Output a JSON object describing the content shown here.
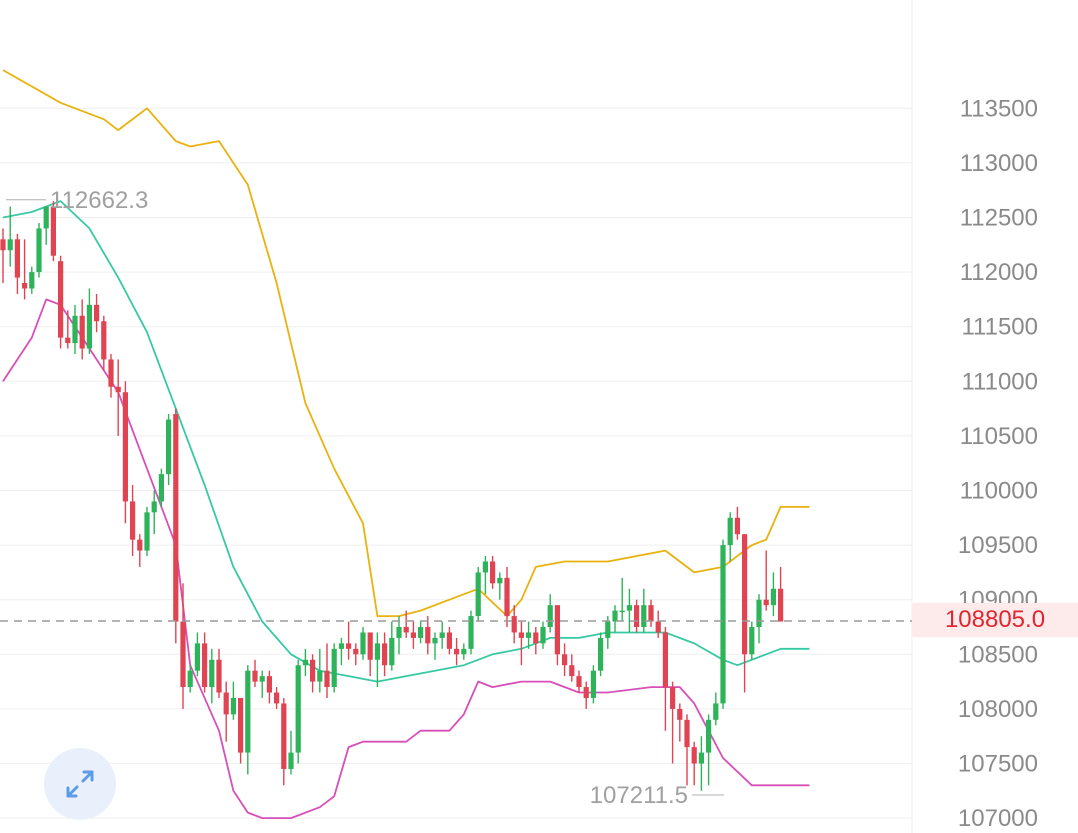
{
  "chart_data": {
    "type": "candlestick",
    "y_ticks": [
      "107000",
      "107500",
      "108000",
      "108500",
      "109000",
      "109500",
      "110000",
      "110500",
      "111000",
      "111500",
      "112000",
      "112500",
      "113000",
      "113500"
    ],
    "ylim": [
      107000,
      113500
    ],
    "grid": true,
    "current_price": 108805.0,
    "current_price_label": "108805.0",
    "high_label": "112662.3",
    "high_value": 112662.3,
    "low_label": "107211.5",
    "low_value": 107211.5,
    "colors": {
      "up": "#2eb35a",
      "down": "#e04352",
      "upper_band": "#e9b20e",
      "middle_band": "#37c9a3",
      "lower_band": "#d74fb8",
      "current_line": "#9a9a9a",
      "grid": "#efefef"
    },
    "candles": [
      [
        112300,
        112400,
        111900,
        112200
      ],
      [
        112200,
        112600,
        112050,
        112300
      ],
      [
        112300,
        112350,
        111800,
        111950
      ],
      [
        111900,
        112300,
        111750,
        111850
      ],
      [
        111850,
        112050,
        111800,
        112000
      ],
      [
        112000,
        112450,
        111950,
        112400
      ],
      [
        112400,
        112600,
        112250,
        112600
      ],
      [
        112600,
        112650,
        112100,
        112150
      ],
      [
        112100,
        112150,
        111300,
        111400
      ],
      [
        111400,
        111650,
        111300,
        111350
      ],
      [
        111350,
        111700,
        111250,
        111600
      ],
      [
        111600,
        111750,
        111200,
        111300
      ],
      [
        111300,
        111850,
        111250,
        111700
      ],
      [
        111700,
        111800,
        111450,
        111550
      ],
      [
        111550,
        111600,
        111100,
        111200
      ],
      [
        111200,
        111250,
        110850,
        110950
      ],
      [
        110950,
        111200,
        110500,
        110900
      ],
      [
        110900,
        111000,
        109700,
        109900
      ],
      [
        109900,
        110050,
        109400,
        109550
      ],
      [
        109550,
        109600,
        109300,
        109450
      ],
      [
        109450,
        109850,
        109400,
        109800
      ],
      [
        109800,
        110000,
        109600,
        109900
      ],
      [
        109900,
        110200,
        109850,
        110150
      ],
      [
        110150,
        110700,
        110050,
        110650
      ],
      [
        110700,
        110750,
        108600,
        108800
      ],
      [
        108800,
        109150,
        108000,
        108200
      ],
      [
        108200,
        108400,
        108150,
        108350
      ],
      [
        108350,
        108700,
        108300,
        108600
      ],
      [
        108600,
        108700,
        108150,
        108200
      ],
      [
        108200,
        108550,
        108050,
        108450
      ],
      [
        108450,
        108550,
        108100,
        108150
      ],
      [
        108150,
        108250,
        107700,
        107950
      ],
      [
        107950,
        108250,
        107900,
        108100
      ],
      [
        108100,
        108100,
        107500,
        107600
      ],
      [
        107600,
        108400,
        107400,
        108350
      ],
      [
        108350,
        108450,
        108200,
        108250
      ],
      [
        108250,
        108350,
        108100,
        108300
      ],
      [
        108300,
        108350,
        108050,
        108150
      ],
      [
        108150,
        108200,
        108000,
        108050
      ],
      [
        108050,
        108100,
        107300,
        107450
      ],
      [
        107450,
        107800,
        107400,
        107600
      ],
      [
        107600,
        108450,
        107500,
        108400
      ],
      [
        108400,
        108550,
        108300,
        108450
      ],
      [
        108450,
        108500,
        108150,
        108250
      ],
      [
        108250,
        108550,
        108150,
        108350
      ],
      [
        108350,
        108600,
        108100,
        108200
      ],
      [
        108200,
        108600,
        108150,
        108550
      ],
      [
        108550,
        108650,
        108400,
        108600
      ],
      [
        108600,
        108800,
        108450,
        108550
      ],
      [
        108550,
        108600,
        108400,
        108500
      ],
      [
        108500,
        108750,
        108450,
        108700
      ],
      [
        108700,
        108650,
        108300,
        108450
      ],
      [
        108450,
        108700,
        108200,
        108600
      ],
      [
        108600,
        108700,
        108300,
        108400
      ],
      [
        108400,
        108800,
        108350,
        108650
      ],
      [
        108650,
        108850,
        108500,
        108750
      ],
      [
        108750,
        108900,
        108650,
        108700
      ],
      [
        108700,
        108800,
        108550,
        108650
      ],
      [
        108650,
        108800,
        108600,
        108750
      ],
      [
        108750,
        108850,
        108500,
        108600
      ],
      [
        108600,
        108700,
        108450,
        108650
      ],
      [
        108650,
        108800,
        108550,
        108700
      ],
      [
        108700,
        108750,
        108500,
        108550
      ],
      [
        108550,
        108650,
        108400,
        108500
      ],
      [
        108500,
        108600,
        108450,
        108550
      ],
      [
        108550,
        108900,
        108500,
        108850
      ],
      [
        108850,
        109300,
        108800,
        109250
      ],
      [
        109250,
        109400,
        109050,
        109350
      ],
      [
        109350,
        109400,
        109100,
        109150
      ],
      [
        109150,
        109250,
        109000,
        109200
      ],
      [
        109200,
        109300,
        108750,
        108850
      ],
      [
        108850,
        108950,
        108600,
        108700
      ],
      [
        108700,
        108800,
        108400,
        108650
      ],
      [
        108650,
        108800,
        108550,
        108700
      ],
      [
        108700,
        108750,
        108500,
        108600
      ],
      [
        108600,
        108800,
        108550,
        108750
      ],
      [
        108750,
        109050,
        108700,
        108950
      ],
      [
        108950,
        108950,
        108400,
        108500
      ],
      [
        108500,
        108600,
        108300,
        108400
      ],
      [
        108400,
        108500,
        108250,
        108300
      ],
      [
        108300,
        108350,
        108150,
        108200
      ],
      [
        108200,
        108250,
        108000,
        108100
      ],
      [
        108100,
        108400,
        108050,
        108350
      ],
      [
        108350,
        108700,
        108300,
        108650
      ],
      [
        108650,
        108850,
        108550,
        108800
      ],
      [
        108800,
        108950,
        108700,
        108900
      ],
      [
        108900,
        109200,
        108800,
        108900
      ],
      [
        108900,
        109100,
        108700,
        108950
      ],
      [
        108950,
        109000,
        108700,
        108750
      ],
      [
        108750,
        109100,
        108700,
        108950
      ],
      [
        108950,
        109000,
        108750,
        108800
      ],
      [
        108800,
        108900,
        108650,
        108700
      ],
      [
        108700,
        108750,
        107800,
        108200
      ],
      [
        108200,
        108250,
        107500,
        108000
      ],
      [
        108000,
        108050,
        107700,
        107900
      ],
      [
        107900,
        107950,
        107300,
        107650
      ],
      [
        107650,
        107700,
        107300,
        107500
      ],
      [
        107500,
        107750,
        107250,
        107600
      ],
      [
        107600,
        107950,
        107300,
        107900
      ],
      [
        107900,
        108150,
        107850,
        108050
      ],
      [
        108050,
        109550,
        108000,
        109500
      ],
      [
        109500,
        109800,
        109350,
        109750
      ],
      [
        109750,
        109850,
        109550,
        109600
      ],
      [
        109600,
        109600,
        108150,
        108500
      ],
      [
        108500,
        108800,
        108450,
        108750
      ],
      [
        108750,
        109050,
        108600,
        109000
      ],
      [
        109000,
        109450,
        108900,
        108950
      ],
      [
        108950,
        109250,
        108850,
        109100
      ],
      [
        109100,
        109300,
        108800,
        108800
      ]
    ],
    "bands": {
      "upper": [
        [
          0,
          113850
        ],
        [
          8,
          113550
        ],
        [
          10,
          113500
        ],
        [
          14,
          113400
        ],
        [
          16,
          113300
        ],
        [
          20,
          113500
        ],
        [
          24,
          113200
        ],
        [
          26,
          113150
        ],
        [
          30,
          113200
        ],
        [
          34,
          112800
        ],
        [
          38,
          111900
        ],
        [
          42,
          110800
        ],
        [
          46,
          110200
        ],
        [
          50,
          109700
        ],
        [
          52,
          108850
        ],
        [
          55,
          108850
        ],
        [
          58,
          108900
        ],
        [
          62,
          109000
        ],
        [
          66,
          109100
        ],
        [
          70,
          108850
        ],
        [
          72,
          109000
        ],
        [
          74,
          109300
        ],
        [
          78,
          109350
        ],
        [
          84,
          109350
        ],
        [
          92,
          109450
        ],
        [
          96,
          109250
        ],
        [
          100,
          109300
        ],
        [
          104,
          109500
        ],
        [
          106,
          109550
        ],
        [
          108,
          109850
        ],
        [
          112,
          109850
        ]
      ],
      "middle": [
        [
          0,
          112500
        ],
        [
          4,
          112550
        ],
        [
          8,
          112650
        ],
        [
          12,
          112400
        ],
        [
          16,
          111950
        ],
        [
          20,
          111450
        ],
        [
          24,
          110750
        ],
        [
          28,
          110050
        ],
        [
          32,
          109300
        ],
        [
          36,
          108800
        ],
        [
          40,
          108500
        ],
        [
          44,
          108350
        ],
        [
          48,
          108300
        ],
        [
          52,
          108250
        ],
        [
          56,
          108300
        ],
        [
          60,
          108350
        ],
        [
          64,
          108400
        ],
        [
          68,
          108500
        ],
        [
          72,
          108550
        ],
        [
          76,
          108650
        ],
        [
          80,
          108650
        ],
        [
          84,
          108700
        ],
        [
          88,
          108700
        ],
        [
          92,
          108700
        ],
        [
          96,
          108600
        ],
        [
          100,
          108450
        ],
        [
          102,
          108400
        ],
        [
          104,
          108450
        ],
        [
          108,
          108550
        ],
        [
          112,
          108550
        ]
      ],
      "lower": [
        [
          0,
          111000
        ],
        [
          4,
          111400
        ],
        [
          6,
          111750
        ],
        [
          8,
          111700
        ],
        [
          12,
          111300
        ],
        [
          16,
          110900
        ],
        [
          20,
          110200
        ],
        [
          24,
          109500
        ],
        [
          26,
          108400
        ],
        [
          30,
          107800
        ],
        [
          32,
          107250
        ],
        [
          34,
          107050
        ],
        [
          36,
          107000
        ],
        [
          40,
          107000
        ],
        [
          44,
          107100
        ],
        [
          46,
          107200
        ],
        [
          48,
          107650
        ],
        [
          50,
          107700
        ],
        [
          56,
          107700
        ],
        [
          58,
          107800
        ],
        [
          62,
          107800
        ],
        [
          64,
          107950
        ],
        [
          66,
          108250
        ],
        [
          68,
          108200
        ],
        [
          72,
          108250
        ],
        [
          76,
          108250
        ],
        [
          80,
          108150
        ],
        [
          84,
          108150
        ],
        [
          90,
          108200
        ],
        [
          94,
          108200
        ],
        [
          96,
          108050
        ],
        [
          98,
          107800
        ],
        [
          100,
          107550
        ],
        [
          104,
          107300
        ],
        [
          108,
          107300
        ],
        [
          112,
          107300
        ]
      ]
    }
  }
}
